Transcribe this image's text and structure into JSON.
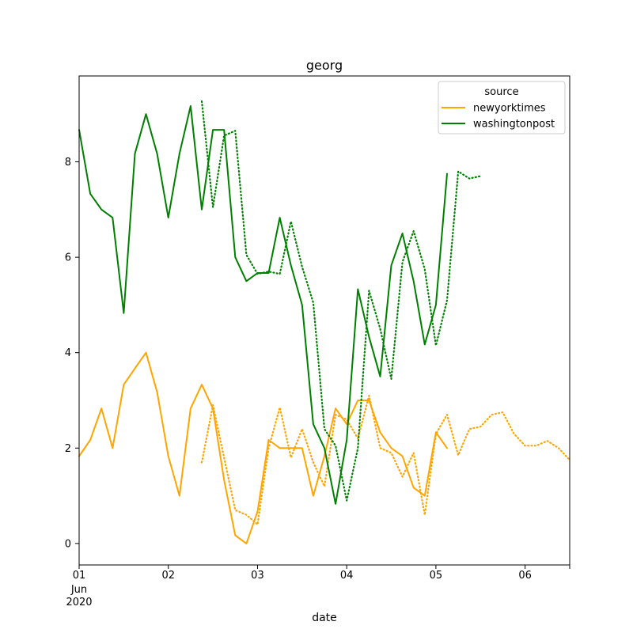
{
  "chart_data": {
    "type": "line",
    "title": "georg",
    "xlabel": "date",
    "ylabel": "",
    "x_range": [
      "2020-06-01T00:00",
      "2020-06-06T12:00"
    ],
    "ylim": [
      -0.45,
      9.8
    ],
    "x_ticks": [
      {
        "x": "2020-06-01",
        "label": "01",
        "sub": [
          "Jun",
          "2020"
        ]
      },
      {
        "x": "2020-06-02",
        "label": "02",
        "sub": []
      },
      {
        "x": "2020-06-03",
        "label": "03",
        "sub": []
      },
      {
        "x": "2020-06-04",
        "label": "04",
        "sub": []
      },
      {
        "x": "2020-06-05",
        "label": "05",
        "sub": []
      },
      {
        "x": "2020-06-06",
        "label": "06",
        "sub": []
      },
      {
        "x": "2020-06-06T12:00",
        "label": "",
        "sub": []
      }
    ],
    "y_ticks": [
      0,
      2,
      4,
      6,
      8
    ],
    "grid": false,
    "legend": {
      "title": "source",
      "placement": "top-right",
      "entries": [
        {
          "name": "newyorktimes",
          "color": "#ffa500"
        },
        {
          "name": "washingtonpost",
          "color": "#008000"
        }
      ]
    },
    "series": [
      {
        "name": "newyorktimes",
        "style": "solid",
        "color": "#ffa500",
        "x": [
          "2020-06-01T00:00",
          "2020-06-01T03:00",
          "2020-06-01T06:00",
          "2020-06-01T09:00",
          "2020-06-01T12:00",
          "2020-06-01T15:00",
          "2020-06-01T18:00",
          "2020-06-01T21:00",
          "2020-06-02T00:00",
          "2020-06-02T03:00",
          "2020-06-02T06:00",
          "2020-06-02T09:00",
          "2020-06-02T12:00",
          "2020-06-02T15:00",
          "2020-06-02T18:00",
          "2020-06-02T21:00",
          "2020-06-03T00:00",
          "2020-06-03T03:00",
          "2020-06-03T06:00",
          "2020-06-03T09:00",
          "2020-06-03T12:00",
          "2020-06-03T15:00",
          "2020-06-03T18:00",
          "2020-06-03T21:00",
          "2020-06-04T00:00",
          "2020-06-04T03:00",
          "2020-06-04T06:00",
          "2020-06-04T09:00",
          "2020-06-04T12:00",
          "2020-06-04T15:00",
          "2020-06-04T18:00",
          "2020-06-04T21:00",
          "2020-06-05T00:00",
          "2020-06-05T03:00"
        ],
        "y": [
          1.83,
          2.17,
          2.83,
          2.0,
          3.33,
          3.67,
          4.0,
          3.17,
          1.83,
          1.0,
          2.83,
          3.33,
          2.83,
          1.33,
          0.17,
          0.0,
          0.67,
          2.17,
          2.0,
          2.0,
          2.0,
          1.0,
          1.83,
          2.83,
          2.5,
          3.0,
          3.0,
          2.33,
          2.0,
          1.83,
          1.17,
          1.0,
          2.33,
          2.0
        ]
      },
      {
        "name": "newyorktimes",
        "style": "dotted",
        "color": "#ffa500",
        "x": [
          "2020-06-02T09:00",
          "2020-06-02T12:00",
          "2020-06-02T15:00",
          "2020-06-02T18:00",
          "2020-06-02T21:00",
          "2020-06-03T00:00",
          "2020-06-03T03:00",
          "2020-06-03T06:00",
          "2020-06-03T09:00",
          "2020-06-03T12:00",
          "2020-06-03T15:00",
          "2020-06-03T18:00",
          "2020-06-03T21:00",
          "2020-06-04T00:00",
          "2020-06-04T03:00",
          "2020-06-04T06:00",
          "2020-06-04T09:00",
          "2020-06-04T12:00",
          "2020-06-04T15:00",
          "2020-06-04T18:00",
          "2020-06-04T21:00",
          "2020-06-05T00:00",
          "2020-06-05T03:00",
          "2020-06-05T06:00",
          "2020-06-05T09:00",
          "2020-06-05T12:00",
          "2020-06-05T15:00",
          "2020-06-05T18:00",
          "2020-06-05T21:00",
          "2020-06-06T00:00",
          "2020-06-06T03:00",
          "2020-06-06T06:00",
          "2020-06-06T09:00",
          "2020-06-06T12:00"
        ],
        "y": [
          1.7,
          2.9,
          1.8,
          0.7,
          0.6,
          0.4,
          2.0,
          2.85,
          1.8,
          2.4,
          1.7,
          1.2,
          2.7,
          2.6,
          2.2,
          3.1,
          2.0,
          1.9,
          1.4,
          1.9,
          0.6,
          2.3,
          2.7,
          1.85,
          2.4,
          2.45,
          2.7,
          2.75,
          2.3,
          2.05,
          2.05,
          2.15,
          2.0,
          1.75
        ]
      },
      {
        "name": "washingtonpost",
        "style": "solid",
        "color": "#008000",
        "x": [
          "2020-06-01T00:00",
          "2020-06-01T03:00",
          "2020-06-01T06:00",
          "2020-06-01T09:00",
          "2020-06-01T12:00",
          "2020-06-01T15:00",
          "2020-06-01T18:00",
          "2020-06-01T21:00",
          "2020-06-02T00:00",
          "2020-06-02T03:00",
          "2020-06-02T06:00",
          "2020-06-02T09:00",
          "2020-06-02T12:00",
          "2020-06-02T15:00",
          "2020-06-02T18:00",
          "2020-06-02T21:00",
          "2020-06-03T00:00",
          "2020-06-03T03:00",
          "2020-06-03T06:00",
          "2020-06-03T09:00",
          "2020-06-03T12:00",
          "2020-06-03T15:00",
          "2020-06-03T18:00",
          "2020-06-03T21:00",
          "2020-06-04T00:00",
          "2020-06-04T03:00",
          "2020-06-04T06:00",
          "2020-06-04T09:00",
          "2020-06-04T12:00",
          "2020-06-04T15:00",
          "2020-06-04T18:00",
          "2020-06-04T21:00",
          "2020-06-05T00:00",
          "2020-06-05T03:00"
        ],
        "y": [
          8.67,
          7.33,
          7.0,
          6.83,
          4.83,
          8.17,
          9.0,
          8.17,
          6.83,
          8.17,
          9.17,
          7.0,
          8.67,
          8.67,
          6.0,
          5.5,
          5.67,
          5.67,
          6.83,
          5.83,
          5.0,
          2.5,
          2.0,
          0.83,
          2.17,
          5.33,
          4.33,
          3.5,
          5.83,
          6.5,
          5.5,
          4.17,
          5.0,
          7.75
        ]
      },
      {
        "name": "washingtonpost",
        "style": "dotted",
        "color": "#008000",
        "x": [
          "2020-06-02T09:00",
          "2020-06-02T12:00",
          "2020-06-02T15:00",
          "2020-06-02T18:00",
          "2020-06-02T21:00",
          "2020-06-03T00:00",
          "2020-06-03T03:00",
          "2020-06-03T06:00",
          "2020-06-03T09:00",
          "2020-06-03T12:00",
          "2020-06-03T15:00",
          "2020-06-03T18:00",
          "2020-06-03T21:00",
          "2020-06-04T00:00",
          "2020-06-04T03:00",
          "2020-06-04T06:00",
          "2020-06-04T09:00",
          "2020-06-04T12:00",
          "2020-06-04T15:00",
          "2020-06-04T18:00",
          "2020-06-04T21:00",
          "2020-06-05T00:00",
          "2020-06-05T03:00",
          "2020-06-05T06:00",
          "2020-06-05T09:00",
          "2020-06-05T12:00"
        ],
        "y": [
          9.27,
          7.05,
          8.55,
          8.65,
          6.05,
          5.65,
          5.7,
          5.65,
          6.75,
          5.8,
          5.05,
          2.4,
          2.05,
          0.9,
          2.0,
          5.3,
          4.5,
          3.45,
          5.9,
          6.55,
          5.75,
          4.15,
          5.1,
          7.8,
          7.65,
          7.7
        ]
      }
    ]
  }
}
